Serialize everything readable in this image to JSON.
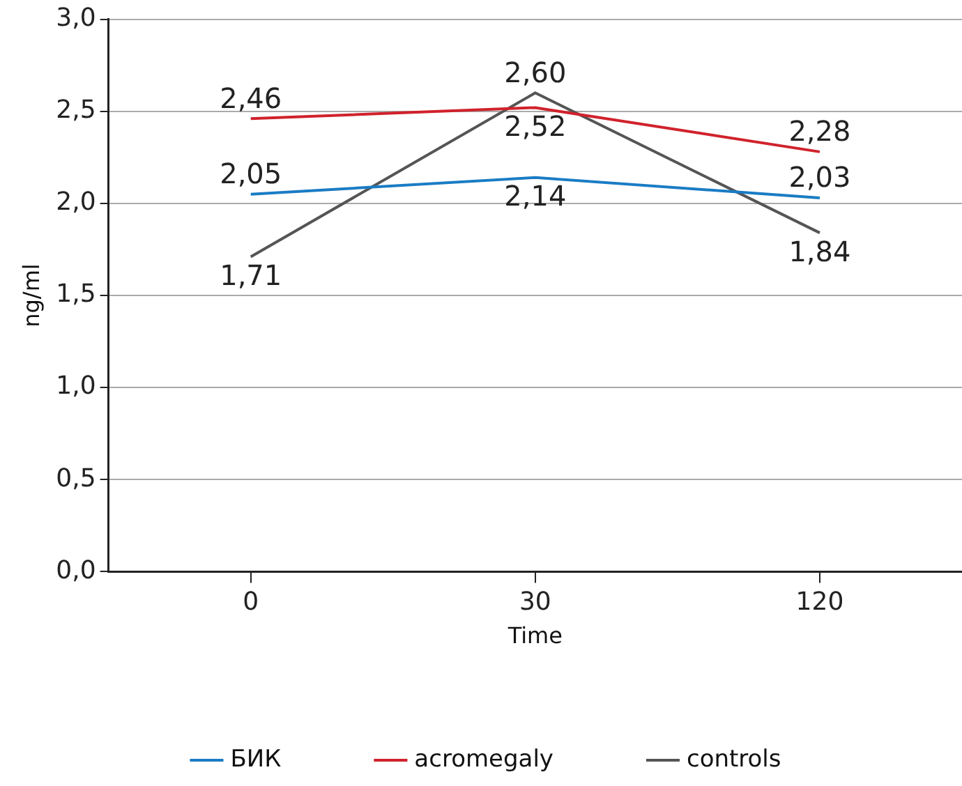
{
  "chart_data": {
    "type": "line",
    "xlabel": "Time",
    "ylabel": "ng/ml",
    "categories": [
      "0",
      "30",
      "120"
    ],
    "series": [
      {
        "name": "БИК",
        "color": "#1a7cc4",
        "values": [
          2.05,
          2.14,
          2.03
        ],
        "value_labels": [
          "2,05",
          "2,14",
          "2,03"
        ]
      },
      {
        "name": "acromegaly",
        "color": "#d0222c",
        "values": [
          2.46,
          2.52,
          2.28
        ],
        "value_labels": [
          "2,46",
          "2,52",
          "2,28"
        ]
      },
      {
        "name": "controls",
        "color": "#555555",
        "values": [
          1.71,
          2.6,
          1.84
        ],
        "value_labels": [
          "1,71",
          "2,60",
          "1,84"
        ]
      }
    ],
    "ylim": [
      0,
      3
    ],
    "yticks": [
      {
        "value": 0,
        "label": "0,0"
      },
      {
        "value": 0.5,
        "label": "0,5"
      },
      {
        "value": 1,
        "label": "1,0"
      },
      {
        "value": 1.5,
        "label": "1,5"
      },
      {
        "value": 2,
        "label": "2,0"
      },
      {
        "value": 2.5,
        "label": "2,5"
      },
      {
        "value": 3,
        "label": "3,0"
      }
    ],
    "grid": "y",
    "legend": "bottom",
    "marker": "none",
    "line_style": "solid"
  }
}
